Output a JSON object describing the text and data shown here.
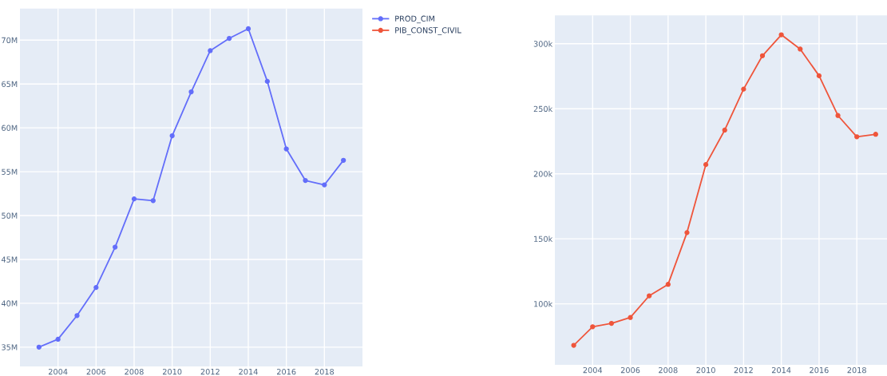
{
  "chart_data": [
    {
      "type": "line",
      "x": [
        2003,
        2004,
        2005,
        2006,
        2007,
        2008,
        2009,
        2010,
        2011,
        2012,
        2013,
        2014,
        2015,
        2016,
        2017,
        2018,
        2019
      ],
      "series": [
        {
          "name": "PROD_CIM",
          "color": "#636efa",
          "values": [
            35000000,
            35900000,
            38600000,
            41800000,
            46400000,
            51900000,
            51700000,
            59100000,
            64100000,
            68800000,
            70200000,
            71300000,
            65300000,
            57600000,
            54000000,
            53500000,
            56300000
          ]
        }
      ],
      "xlim": [
        2002,
        2020
      ],
      "xticks": [
        2004,
        2006,
        2008,
        2010,
        2012,
        2014,
        2016,
        2018
      ],
      "ylim": [
        32800000,
        73600000
      ],
      "yticks": [
        {
          "value": 35000000,
          "label": "35M"
        },
        {
          "value": 40000000,
          "label": "40M"
        },
        {
          "value": 45000000,
          "label": "45M"
        },
        {
          "value": 50000000,
          "label": "50M"
        },
        {
          "value": 55000000,
          "label": "55M"
        },
        {
          "value": 60000000,
          "label": "60M"
        },
        {
          "value": 65000000,
          "label": "65M"
        },
        {
          "value": 70000000,
          "label": "70M"
        }
      ],
      "grid": true,
      "marker": "circle",
      "line_style": "solid",
      "legend": "top right"
    },
    {
      "type": "line",
      "x": [
        2003,
        2004,
        2005,
        2006,
        2007,
        2008,
        2009,
        2010,
        2011,
        2012,
        2013,
        2014,
        2015,
        2016,
        2017,
        2018,
        2019
      ],
      "series": [
        {
          "name": "PIB_CONST_CIVIL",
          "color": "#ef553b",
          "values": [
            68100,
            82400,
            85000,
            89500,
            106200,
            115000,
            154800,
            207100,
            233600,
            265100,
            290800,
            306900,
            295900,
            275400,
            244800,
            228500,
            230400
          ]
        }
      ],
      "xlim": [
        2002,
        2019.6
      ],
      "xticks": [
        2004,
        2006,
        2008,
        2010,
        2012,
        2014,
        2016,
        2018
      ],
      "ylim": [
        53100,
        321800
      ],
      "yticks": [
        {
          "value": 100000,
          "label": "100k"
        },
        {
          "value": 150000,
          "label": "150k"
        },
        {
          "value": 200000,
          "label": "200k"
        },
        {
          "value": 250000,
          "label": "250k"
        },
        {
          "value": 300000,
          "label": "300k"
        }
      ],
      "grid": true,
      "marker": "circle",
      "line_style": "solid"
    }
  ]
}
